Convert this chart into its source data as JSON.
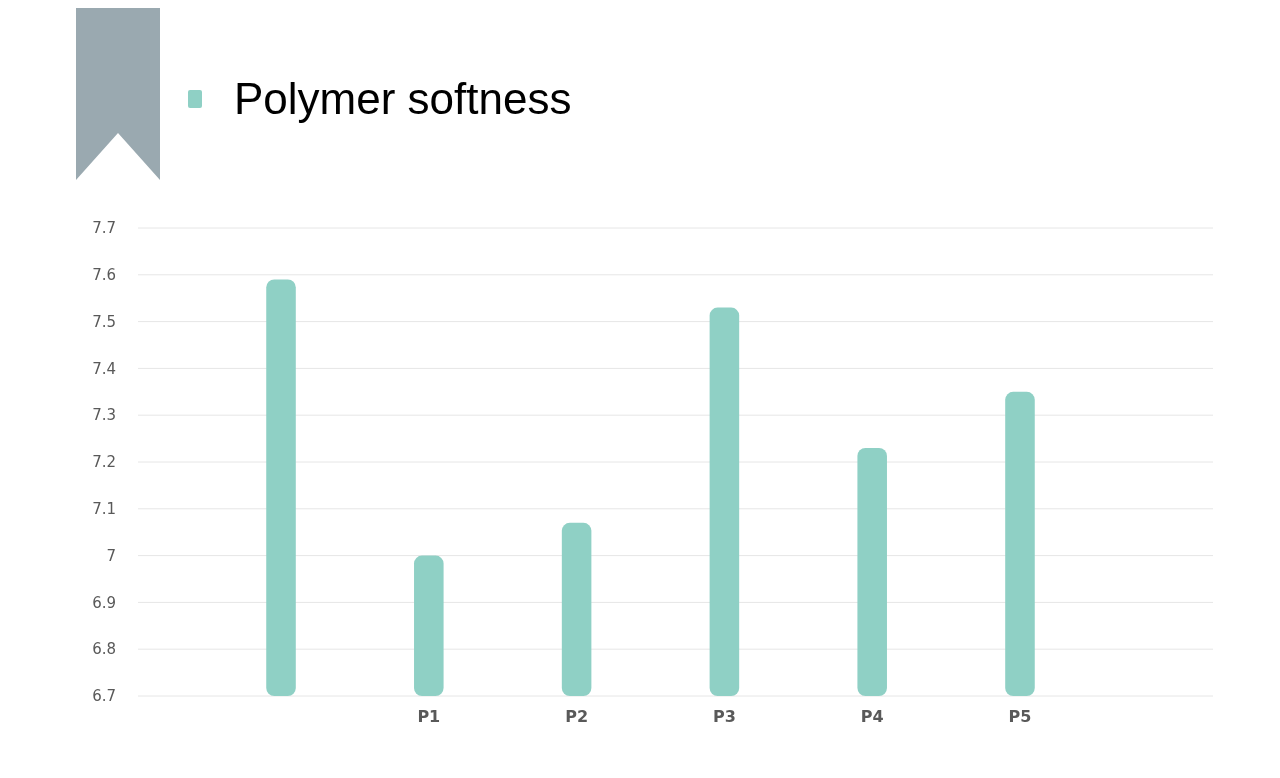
{
  "chart_data": {
    "type": "bar",
    "categories": [
      null,
      "P1",
      "P2",
      "P3",
      "P4",
      "P5"
    ],
    "series": [
      {
        "name": "Polymer softness",
        "color": "#8fd0c5",
        "values": [
          7.59,
          7.0,
          7.07,
          7.53,
          7.23,
          7.35
        ]
      }
    ],
    "ylim": [
      6.7,
      7.7
    ],
    "yticks": [
      {
        "value": 6.7,
        "label": "6.7"
      },
      {
        "value": 6.8,
        "label": "6.8"
      },
      {
        "value": 6.9,
        "label": "6.9"
      },
      {
        "value": 7,
        "label": "7"
      },
      {
        "value": 7.1,
        "label": "7.1"
      },
      {
        "value": 7.2,
        "label": "7.2"
      },
      {
        "value": 7.3,
        "label": "7.3"
      },
      {
        "value": 7.4,
        "label": "7.4"
      },
      {
        "value": 7.5,
        "label": "7.5"
      },
      {
        "value": 7.6,
        "label": "7.6"
      },
      {
        "value": 7.7,
        "label": "7.7"
      }
    ],
    "grid": "y",
    "legend": "top left"
  }
}
